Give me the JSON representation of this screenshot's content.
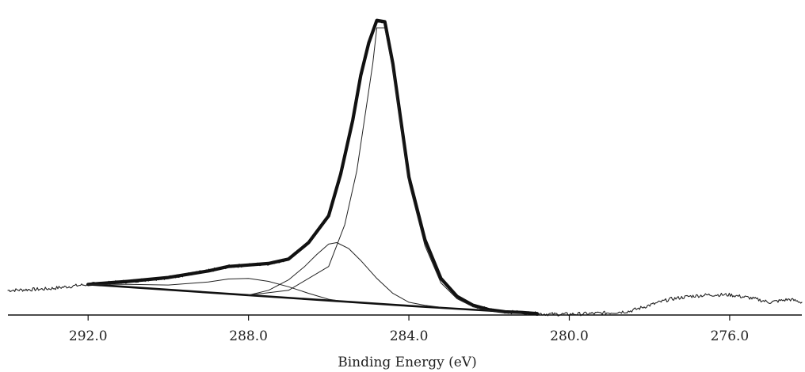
{
  "chart_data": {
    "type": "line",
    "title": "",
    "xlabel": "Binding Energy (eV)",
    "ylabel": "",
    "xlim": [
      294.0,
      274.2
    ],
    "x_reversed": true,
    "ylim": [
      0,
      1
    ],
    "grid": false,
    "legend": "none",
    "x_ticks": [
      {
        "value": 292.0,
        "label": "292.0"
      },
      {
        "value": 288.0,
        "label": "288.0"
      },
      {
        "value": 284.0,
        "label": "284.0"
      },
      {
        "value": 280.0,
        "label": "280.0"
      },
      {
        "value": 276.0,
        "label": "276.0"
      }
    ],
    "series": [
      {
        "role": "raw-spectrum",
        "x": [
          294.0,
          293.0,
          292.0,
          291.0,
          290.0,
          289.0,
          288.5,
          288.0,
          287.5,
          287.0,
          286.5,
          286.0,
          285.7,
          285.4,
          285.2,
          285.0,
          284.8,
          284.6,
          284.4,
          284.2,
          284.0,
          283.6,
          283.2,
          282.8,
          282.4,
          282.0,
          281.6,
          281.2,
          280.8,
          280.4,
          280.0,
          279.5,
          279.0,
          278.5,
          278.0,
          277.5,
          277.0,
          276.5,
          276.0,
          275.5,
          275.0,
          274.5,
          274.2
        ],
        "y": [
          0.08,
          0.085,
          0.1,
          0.11,
          0.123,
          0.145,
          0.16,
          0.165,
          0.17,
          0.185,
          0.24,
          0.33,
          0.47,
          0.65,
          0.8,
          0.91,
          0.985,
          0.98,
          0.84,
          0.65,
          0.46,
          0.25,
          0.12,
          0.06,
          0.03,
          0.015,
          0.008,
          0.006,
          0.002,
          0.0,
          0.0,
          0.002,
          0.005,
          0.01,
          0.03,
          0.05,
          0.06,
          0.065,
          0.065,
          0.055,
          0.04,
          0.05,
          0.04
        ],
        "noise": true
      },
      {
        "role": "fit-envelope",
        "x": [
          292.0,
          291.0,
          290.0,
          289.0,
          288.5,
          288.0,
          287.5,
          287.0,
          286.5,
          286.0,
          285.7,
          285.4,
          285.2,
          285.0,
          284.8,
          284.6,
          284.4,
          284.2,
          284.0,
          283.6,
          283.2,
          282.8,
          282.4,
          282.0,
          281.6,
          281.2,
          280.8
        ],
        "y": [
          0.1,
          0.11,
          0.123,
          0.145,
          0.16,
          0.165,
          0.17,
          0.185,
          0.24,
          0.33,
          0.47,
          0.65,
          0.8,
          0.91,
          0.985,
          0.98,
          0.84,
          0.65,
          0.46,
          0.25,
          0.12,
          0.06,
          0.03,
          0.015,
          0.008,
          0.006,
          0.002
        ]
      },
      {
        "role": "background",
        "x": [
          292.0,
          290.0,
          288.0,
          286.0,
          284.0,
          283.0,
          282.0,
          281.0,
          280.8
        ],
        "y": [
          0.1,
          0.082,
          0.064,
          0.046,
          0.028,
          0.02,
          0.012,
          0.004,
          0.002
        ]
      },
      {
        "role": "component-peak",
        "x": [
          288.0,
          287.0,
          286.0,
          285.6,
          285.3,
          285.1,
          284.9,
          284.8,
          284.6,
          284.4,
          284.2,
          284.0,
          283.6,
          283.2,
          282.8,
          282.4,
          282.0,
          281.6,
          281.2
        ],
        "y": [
          0.064,
          0.08,
          0.16,
          0.3,
          0.48,
          0.66,
          0.84,
          0.96,
          0.96,
          0.82,
          0.63,
          0.44,
          0.23,
          0.105,
          0.052,
          0.025,
          0.012,
          0.006,
          0.004
        ]
      },
      {
        "role": "component-peak",
        "x": [
          288.0,
          287.5,
          287.0,
          286.6,
          286.3,
          286.0,
          285.8,
          285.5,
          285.2,
          284.8,
          284.4,
          284.0,
          283.6,
          283.2
        ],
        "y": [
          0.064,
          0.08,
          0.115,
          0.16,
          0.2,
          0.235,
          0.24,
          0.22,
          0.18,
          0.12,
          0.07,
          0.04,
          0.03,
          0.023
        ]
      },
      {
        "role": "component-peak",
        "x": [
          292.0,
          291.0,
          290.0,
          289.0,
          288.5,
          288.0,
          287.5,
          287.0,
          286.5,
          286.0,
          285.5
        ],
        "y": [
          0.1,
          0.1,
          0.098,
          0.108,
          0.118,
          0.12,
          0.11,
          0.092,
          0.07,
          0.05,
          0.04
        ]
      }
    ]
  }
}
